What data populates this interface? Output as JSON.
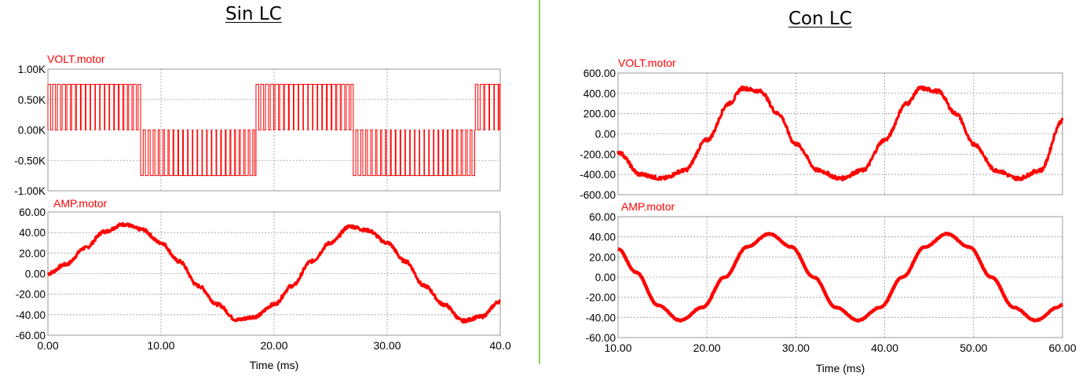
{
  "left_panel": {
    "title": "Sin LC"
  },
  "right_panel": {
    "title": "Con LC"
  },
  "colors": {
    "trace": "#ff0000",
    "grid": "#9a9a9a",
    "axis_line": "#999999",
    "divider": "#8fca6a"
  },
  "chart_data": [
    {
      "id": "left-volt",
      "type": "line",
      "title": "VOLT.motor",
      "xlabel": "",
      "ylabel": "",
      "xlim": [
        0,
        40
      ],
      "ylim": [
        -1000,
        1000
      ],
      "yticks": [
        "1.00K",
        "0.50K",
        "0.00K",
        "-0.50K",
        "-1.00K"
      ],
      "xticks": [],
      "grid": true,
      "signal": "PWM switching waveform, levels +750 / 0 / -750 V, positive pulses 0-8.2 ms, 18.4-27 ms, 37.8-40 ms; negative pulses 8.2-18.4 ms, 27-37.8 ms",
      "series": [
        {
          "name": "",
          "x": [
            0,
            8.2,
            8.2,
            18.4,
            18.4,
            27.0,
            27.0,
            37.8,
            37.8,
            40
          ],
          "y": [
            750,
            750,
            -750,
            -750,
            750,
            750,
            -750,
            -750,
            750,
            750
          ]
        }
      ]
    },
    {
      "id": "left-amp",
      "type": "line",
      "title": "AMP.motor",
      "xlabel": "Time (ms)",
      "ylabel": "",
      "xlim": [
        0,
        40
      ],
      "ylim": [
        -60,
        60
      ],
      "yticks": [
        "60.00",
        "40.00",
        "20.00",
        "0.00",
        "-20.00",
        "-40.00",
        "-60.00"
      ],
      "xticks": [
        "0.00",
        "10.00",
        "20.00",
        "30.00",
        "40.0"
      ],
      "grid": true,
      "series": [
        {
          "name": "",
          "x": [
            0,
            1.6,
            3.3,
            5,
            6.7,
            8.3,
            10,
            11.6,
            13.3,
            15,
            16.7,
            18.3,
            20,
            21.6,
            23.3,
            25,
            26.7,
            28.3,
            30,
            31.6,
            33.3,
            35,
            36.7,
            38.3,
            40
          ],
          "y": [
            0,
            9,
            25,
            41,
            48,
            43,
            30,
            12,
            -12,
            -30,
            -45,
            -42,
            -30,
            -12,
            12,
            30,
            46,
            42,
            30,
            12,
            -12,
            -30,
            -46,
            -42,
            -27
          ]
        }
      ]
    },
    {
      "id": "right-volt",
      "type": "line",
      "title": "VOLT.motor",
      "xlabel": "",
      "ylabel": "",
      "xlim": [
        10,
        60
      ],
      "ylim": [
        -600,
        600
      ],
      "yticks": [
        "600.00",
        "400.00",
        "200.00",
        "0.00",
        "-200.00",
        "-400.00",
        "-600.00"
      ],
      "xticks": [],
      "grid": true,
      "series": [
        {
          "name": "",
          "x": [
            10,
            12.5,
            15,
            17.5,
            20,
            22.5,
            24,
            26,
            28,
            30,
            32.5,
            35,
            37.5,
            40,
            42.5,
            44,
            46,
            48,
            50,
            52.5,
            55,
            57.5,
            60
          ],
          "y": [
            -180,
            -400,
            -440,
            -360,
            -60,
            300,
            450,
            420,
            200,
            -100,
            -360,
            -440,
            -360,
            -60,
            300,
            450,
            420,
            200,
            -100,
            -360,
            -440,
            -360,
            130
          ]
        }
      ]
    },
    {
      "id": "right-amp",
      "type": "line",
      "title": "AMP.motor",
      "xlabel": "Time (ms)",
      "ylabel": "",
      "xlim": [
        10,
        60
      ],
      "ylim": [
        -60,
        60
      ],
      "yticks": [
        "60.00",
        "40.00",
        "20.00",
        "0.00",
        "-20.00",
        "-40.00",
        "-60.00"
      ],
      "xticks": [
        "10.00",
        "20.00",
        "30.00",
        "40.00",
        "50.00",
        "60.00"
      ],
      "grid": true,
      "series": [
        {
          "name": "",
          "x": [
            10,
            12,
            14.5,
            17,
            19.5,
            22,
            24.5,
            27,
            29.5,
            32,
            34.5,
            37,
            39.5,
            42,
            44.5,
            47,
            49.5,
            52,
            54.5,
            57,
            59.5,
            60
          ],
          "y": [
            28,
            5,
            -28,
            -43,
            -30,
            0,
            30,
            43,
            30,
            0,
            -30,
            -43,
            -30,
            0,
            30,
            43,
            30,
            0,
            -30,
            -43,
            -30,
            -27
          ]
        }
      ]
    }
  ]
}
